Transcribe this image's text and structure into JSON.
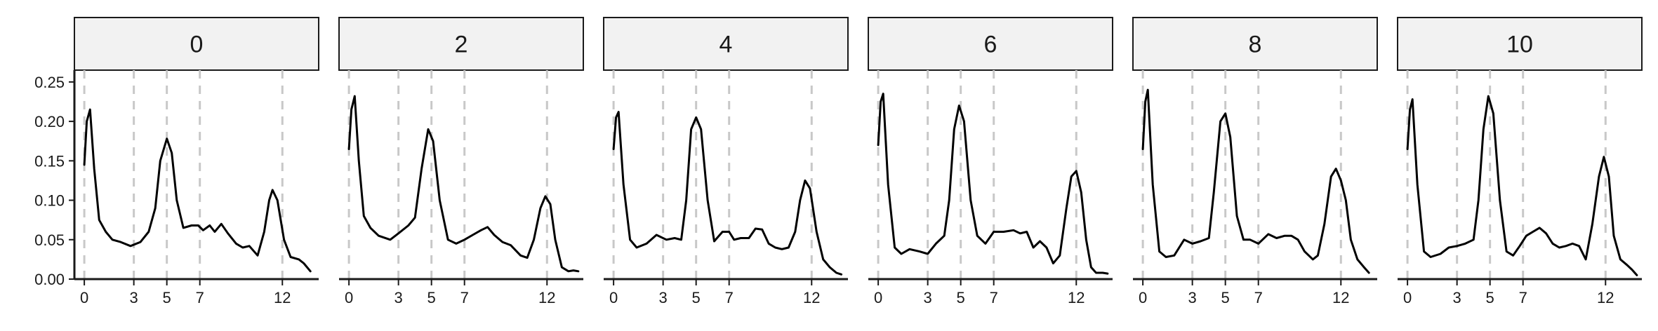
{
  "chart_data": {
    "type": "line",
    "facet_labels": [
      "0",
      "2",
      "4",
      "6",
      "8",
      "10"
    ],
    "xlim": [
      -0.6,
      14.2
    ],
    "ylim": [
      0,
      0.265
    ],
    "x_ticks": [
      0,
      3,
      5,
      7,
      12
    ],
    "y_ticks": [
      0.0,
      0.05,
      0.1,
      0.15,
      0.2,
      0.25
    ],
    "y_tick_labels": [
      "0.00",
      "0.05",
      "0.10",
      "0.15",
      "0.20",
      "0.25"
    ],
    "reference_lines_x": [
      0,
      3,
      5,
      7,
      12
    ],
    "series": [
      {
        "facet": "0",
        "points": [
          [
            0,
            0.145
          ],
          [
            0.15,
            0.2
          ],
          [
            0.35,
            0.215
          ],
          [
            0.6,
            0.14
          ],
          [
            0.9,
            0.075
          ],
          [
            1.3,
            0.06
          ],
          [
            1.7,
            0.05
          ],
          [
            2.2,
            0.047
          ],
          [
            2.8,
            0.042
          ],
          [
            3.4,
            0.047
          ],
          [
            3.9,
            0.06
          ],
          [
            4.3,
            0.09
          ],
          [
            4.6,
            0.15
          ],
          [
            5.0,
            0.178
          ],
          [
            5.3,
            0.16
          ],
          [
            5.6,
            0.1
          ],
          [
            6.0,
            0.065
          ],
          [
            6.5,
            0.068
          ],
          [
            6.9,
            0.068
          ],
          [
            7.2,
            0.062
          ],
          [
            7.6,
            0.068
          ],
          [
            7.9,
            0.06
          ],
          [
            8.3,
            0.07
          ],
          [
            8.7,
            0.058
          ],
          [
            9.2,
            0.045
          ],
          [
            9.6,
            0.04
          ],
          [
            10.0,
            0.042
          ],
          [
            10.5,
            0.03
          ],
          [
            10.9,
            0.06
          ],
          [
            11.2,
            0.1
          ],
          [
            11.4,
            0.113
          ],
          [
            11.7,
            0.1
          ],
          [
            12.1,
            0.05
          ],
          [
            12.5,
            0.028
          ],
          [
            13.0,
            0.025
          ],
          [
            13.3,
            0.02
          ],
          [
            13.7,
            0.01
          ]
        ]
      },
      {
        "facet": "2",
        "points": [
          [
            0,
            0.165
          ],
          [
            0.15,
            0.215
          ],
          [
            0.35,
            0.232
          ],
          [
            0.6,
            0.15
          ],
          [
            0.9,
            0.08
          ],
          [
            1.3,
            0.065
          ],
          [
            1.8,
            0.055
          ],
          [
            2.5,
            0.05
          ],
          [
            3.0,
            0.058
          ],
          [
            3.6,
            0.068
          ],
          [
            4.0,
            0.078
          ],
          [
            4.4,
            0.14
          ],
          [
            4.8,
            0.19
          ],
          [
            5.1,
            0.175
          ],
          [
            5.5,
            0.1
          ],
          [
            6.0,
            0.05
          ],
          [
            6.5,
            0.045
          ],
          [
            7.0,
            0.05
          ],
          [
            7.5,
            0.056
          ],
          [
            8.0,
            0.062
          ],
          [
            8.4,
            0.066
          ],
          [
            8.8,
            0.056
          ],
          [
            9.3,
            0.047
          ],
          [
            9.8,
            0.043
          ],
          [
            10.4,
            0.03
          ],
          [
            10.8,
            0.027
          ],
          [
            11.2,
            0.05
          ],
          [
            11.6,
            0.09
          ],
          [
            11.9,
            0.105
          ],
          [
            12.2,
            0.095
          ],
          [
            12.5,
            0.05
          ],
          [
            12.9,
            0.015
          ],
          [
            13.3,
            0.01
          ],
          [
            13.6,
            0.011
          ],
          [
            13.9,
            0.01
          ]
        ]
      },
      {
        "facet": "4",
        "points": [
          [
            0,
            0.165
          ],
          [
            0.15,
            0.205
          ],
          [
            0.3,
            0.212
          ],
          [
            0.6,
            0.12
          ],
          [
            1.0,
            0.05
          ],
          [
            1.4,
            0.04
          ],
          [
            2.0,
            0.045
          ],
          [
            2.6,
            0.056
          ],
          [
            3.2,
            0.05
          ],
          [
            3.7,
            0.052
          ],
          [
            4.1,
            0.05
          ],
          [
            4.4,
            0.1
          ],
          [
            4.7,
            0.19
          ],
          [
            5.0,
            0.205
          ],
          [
            5.3,
            0.19
          ],
          [
            5.7,
            0.1
          ],
          [
            6.1,
            0.048
          ],
          [
            6.6,
            0.06
          ],
          [
            7.0,
            0.06
          ],
          [
            7.3,
            0.05
          ],
          [
            7.7,
            0.052
          ],
          [
            8.2,
            0.052
          ],
          [
            8.6,
            0.064
          ],
          [
            9.0,
            0.063
          ],
          [
            9.4,
            0.045
          ],
          [
            9.8,
            0.04
          ],
          [
            10.2,
            0.038
          ],
          [
            10.6,
            0.04
          ],
          [
            11.0,
            0.06
          ],
          [
            11.3,
            0.1
          ],
          [
            11.6,
            0.125
          ],
          [
            11.9,
            0.115
          ],
          [
            12.3,
            0.06
          ],
          [
            12.7,
            0.025
          ],
          [
            13.1,
            0.015
          ],
          [
            13.5,
            0.008
          ],
          [
            13.8,
            0.006
          ]
        ]
      },
      {
        "facet": "6",
        "points": [
          [
            0,
            0.17
          ],
          [
            0.15,
            0.225
          ],
          [
            0.3,
            0.235
          ],
          [
            0.6,
            0.12
          ],
          [
            1.0,
            0.04
          ],
          [
            1.4,
            0.032
          ],
          [
            1.9,
            0.038
          ],
          [
            2.5,
            0.035
          ],
          [
            3.0,
            0.032
          ],
          [
            3.5,
            0.045
          ],
          [
            4.0,
            0.055
          ],
          [
            4.3,
            0.1
          ],
          [
            4.6,
            0.19
          ],
          [
            4.9,
            0.22
          ],
          [
            5.2,
            0.2
          ],
          [
            5.6,
            0.1
          ],
          [
            6.0,
            0.055
          ],
          [
            6.5,
            0.045
          ],
          [
            7.0,
            0.06
          ],
          [
            7.6,
            0.06
          ],
          [
            8.2,
            0.062
          ],
          [
            8.6,
            0.058
          ],
          [
            9.0,
            0.06
          ],
          [
            9.4,
            0.04
          ],
          [
            9.8,
            0.048
          ],
          [
            10.2,
            0.04
          ],
          [
            10.6,
            0.02
          ],
          [
            11.0,
            0.03
          ],
          [
            11.4,
            0.09
          ],
          [
            11.7,
            0.13
          ],
          [
            12.0,
            0.137
          ],
          [
            12.3,
            0.11
          ],
          [
            12.6,
            0.05
          ],
          [
            12.9,
            0.015
          ],
          [
            13.2,
            0.008
          ],
          [
            13.6,
            0.008
          ],
          [
            13.9,
            0.007
          ]
        ]
      },
      {
        "facet": "8",
        "points": [
          [
            0,
            0.165
          ],
          [
            0.15,
            0.225
          ],
          [
            0.3,
            0.24
          ],
          [
            0.6,
            0.12
          ],
          [
            1.0,
            0.035
          ],
          [
            1.4,
            0.028
          ],
          [
            1.9,
            0.03
          ],
          [
            2.5,
            0.05
          ],
          [
            3.0,
            0.045
          ],
          [
            3.5,
            0.048
          ],
          [
            4.0,
            0.052
          ],
          [
            4.3,
            0.11
          ],
          [
            4.7,
            0.2
          ],
          [
            5.0,
            0.21
          ],
          [
            5.3,
            0.18
          ],
          [
            5.7,
            0.08
          ],
          [
            6.1,
            0.05
          ],
          [
            6.5,
            0.05
          ],
          [
            7.0,
            0.045
          ],
          [
            7.6,
            0.057
          ],
          [
            8.1,
            0.052
          ],
          [
            8.6,
            0.055
          ],
          [
            9.0,
            0.055
          ],
          [
            9.4,
            0.05
          ],
          [
            9.8,
            0.035
          ],
          [
            10.3,
            0.025
          ],
          [
            10.6,
            0.03
          ],
          [
            11.0,
            0.07
          ],
          [
            11.4,
            0.13
          ],
          [
            11.7,
            0.14
          ],
          [
            12.0,
            0.125
          ],
          [
            12.3,
            0.1
          ],
          [
            12.6,
            0.05
          ],
          [
            13.0,
            0.025
          ],
          [
            13.4,
            0.015
          ],
          [
            13.7,
            0.008
          ]
        ]
      },
      {
        "facet": "10",
        "points": [
          [
            0,
            0.165
          ],
          [
            0.15,
            0.215
          ],
          [
            0.3,
            0.228
          ],
          [
            0.6,
            0.12
          ],
          [
            1.0,
            0.035
          ],
          [
            1.4,
            0.028
          ],
          [
            2.0,
            0.032
          ],
          [
            2.5,
            0.04
          ],
          [
            3.0,
            0.042
          ],
          [
            3.5,
            0.045
          ],
          [
            4.0,
            0.05
          ],
          [
            4.3,
            0.1
          ],
          [
            4.6,
            0.19
          ],
          [
            4.9,
            0.232
          ],
          [
            5.2,
            0.21
          ],
          [
            5.6,
            0.1
          ],
          [
            6.0,
            0.035
          ],
          [
            6.4,
            0.03
          ],
          [
            6.8,
            0.042
          ],
          [
            7.2,
            0.055
          ],
          [
            7.6,
            0.06
          ],
          [
            8.0,
            0.065
          ],
          [
            8.4,
            0.058
          ],
          [
            8.8,
            0.045
          ],
          [
            9.2,
            0.04
          ],
          [
            9.6,
            0.042
          ],
          [
            10.0,
            0.045
          ],
          [
            10.4,
            0.042
          ],
          [
            10.8,
            0.025
          ],
          [
            11.2,
            0.07
          ],
          [
            11.6,
            0.13
          ],
          [
            11.9,
            0.155
          ],
          [
            12.2,
            0.13
          ],
          [
            12.5,
            0.055
          ],
          [
            12.9,
            0.025
          ],
          [
            13.3,
            0.018
          ],
          [
            13.6,
            0.012
          ],
          [
            13.9,
            0.005
          ]
        ]
      }
    ]
  }
}
